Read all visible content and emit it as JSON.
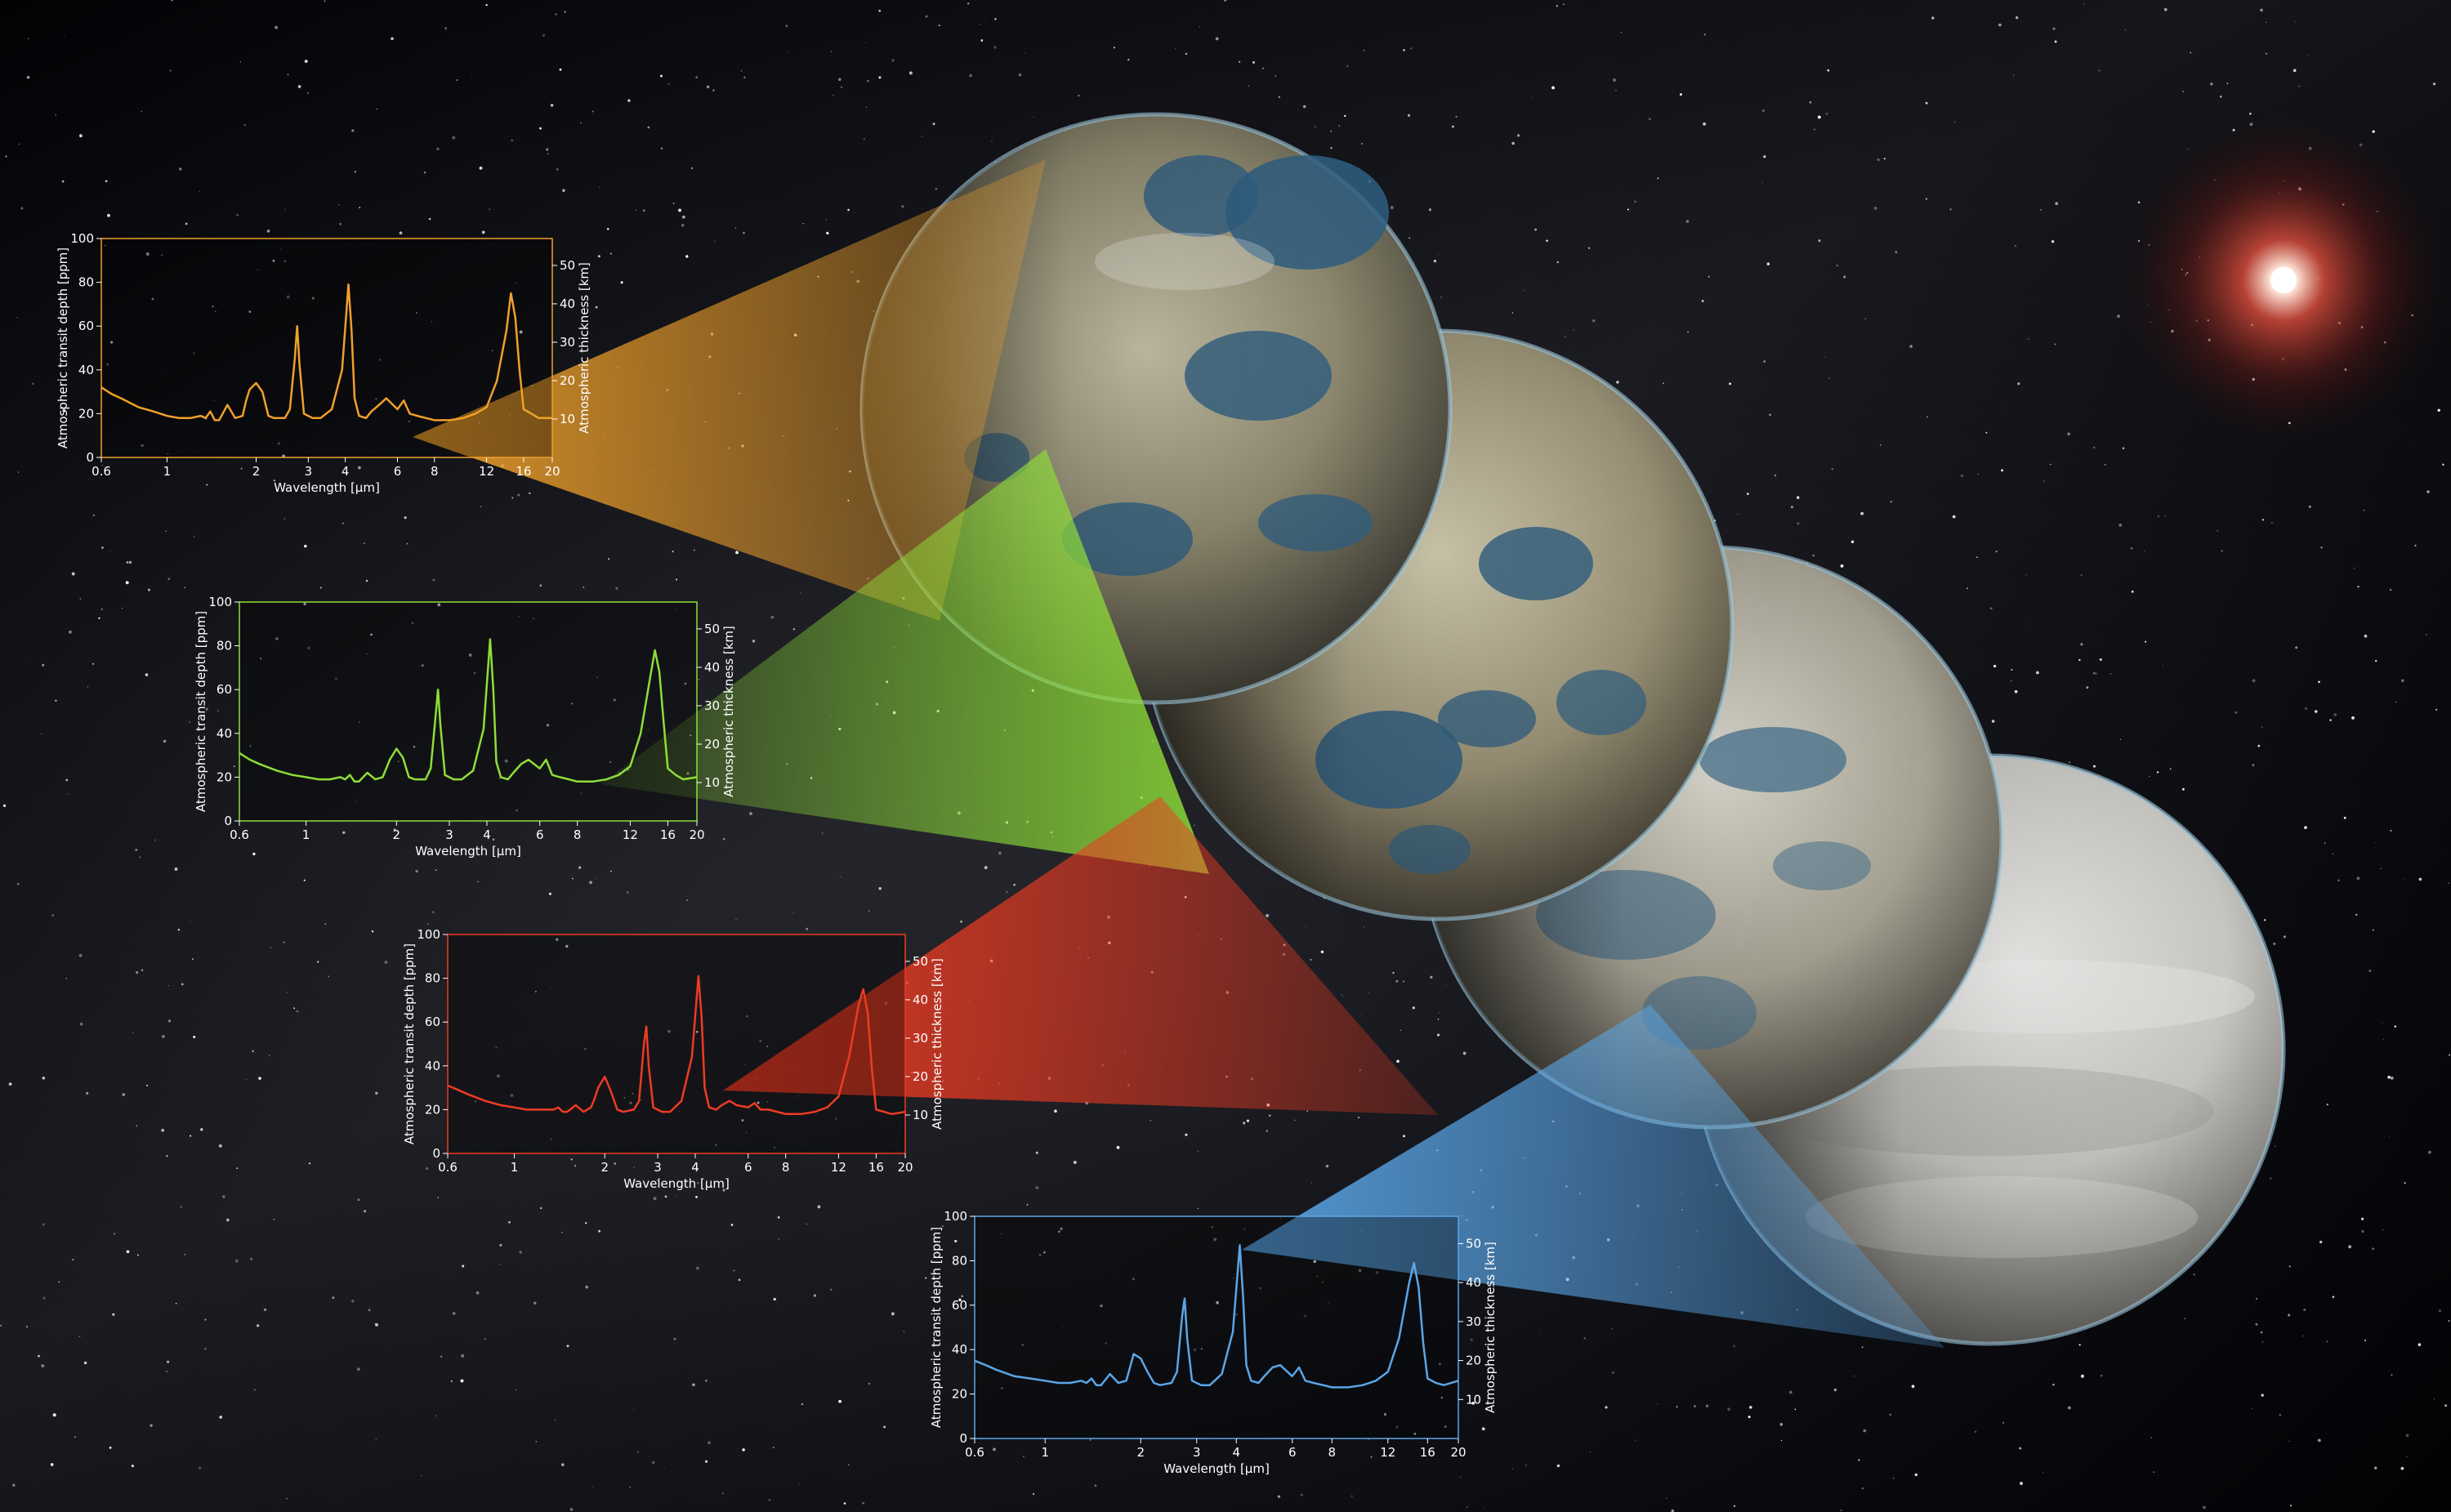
{
  "chart_data": [
    {
      "type": "line",
      "color": "#f0a02a",
      "xlabel": "Wavelength [µm]",
      "ylabel_left": "Atmospheric transit depth [ppm]",
      "ylabel_right": "Atmospheric thickness [km]",
      "xscale": "log",
      "xlim": [
        0.6,
        20
      ],
      "ylim": [
        0,
        100
      ],
      "ylim_right": [
        0,
        57
      ],
      "xticks": [
        "0.6",
        "1",
        "2",
        "3",
        "4",
        "6",
        "8",
        "12",
        "16",
        "20"
      ],
      "yticks": [
        "0",
        "20",
        "40",
        "60",
        "80",
        "100"
      ],
      "yticks_right": [
        "10",
        "20",
        "30",
        "40",
        "50"
      ],
      "series": [
        {
          "x": [
            0.6,
            0.65,
            0.7,
            0.8,
            0.9,
            1.0,
            1.1,
            1.2,
            1.3,
            1.35,
            1.4,
            1.45,
            1.5,
            1.6,
            1.7,
            1.8,
            1.85,
            1.9,
            2.0,
            2.1,
            2.2,
            2.3,
            2.5,
            2.6,
            2.7,
            2.75,
            2.8,
            2.9,
            3.1,
            3.3,
            3.6,
            3.9,
            4.1,
            4.2,
            4.3,
            4.45,
            4.7,
            4.9,
            5.2,
            5.5,
            6.0,
            6.3,
            6.6,
            7.0,
            7.5,
            8.0,
            9.0,
            10.0,
            11.0,
            12.0,
            13.0,
            14.0,
            14.5,
            15.0,
            15.5,
            16.0,
            17.0,
            18.0,
            20.0
          ],
          "y": [
            32,
            29,
            27,
            23,
            21,
            19,
            18,
            18,
            19,
            18,
            21,
            17,
            17,
            24,
            18,
            19,
            26,
            31,
            34,
            30,
            19,
            18,
            18,
            22,
            45,
            60,
            43,
            20,
            18,
            18,
            22,
            40,
            79,
            58,
            27,
            19,
            18,
            21,
            24,
            27,
            22,
            26,
            20,
            19,
            18,
            17,
            17,
            18,
            20,
            23,
            35,
            58,
            75,
            64,
            40,
            22,
            20,
            18,
            18
          ]
        }
      ]
    },
    {
      "type": "line",
      "color": "#8ede38",
      "xlabel": "Wavelength [µm]",
      "ylabel_left": "Atmospheric transit depth [ppm]",
      "ylabel_right": "Atmospheric thickness [km]",
      "xscale": "log",
      "xlim": [
        0.6,
        20
      ],
      "ylim": [
        0,
        100
      ],
      "ylim_right": [
        0,
        57
      ],
      "xticks": [
        "0.6",
        "1",
        "2",
        "3",
        "4",
        "6",
        "8",
        "12",
        "16",
        "20"
      ],
      "yticks": [
        "0",
        "20",
        "40",
        "60",
        "80",
        "100"
      ],
      "yticks_right": [
        "10",
        "20",
        "30",
        "40",
        "50"
      ],
      "series": [
        {
          "x": [
            0.6,
            0.65,
            0.7,
            0.8,
            0.9,
            1.0,
            1.1,
            1.2,
            1.3,
            1.35,
            1.4,
            1.45,
            1.5,
            1.6,
            1.7,
            1.8,
            1.85,
            1.9,
            2.0,
            2.1,
            2.2,
            2.3,
            2.5,
            2.6,
            2.7,
            2.75,
            2.8,
            2.9,
            3.1,
            3.3,
            3.6,
            3.9,
            4.1,
            4.2,
            4.3,
            4.45,
            4.7,
            4.9,
            5.2,
            5.5,
            6.0,
            6.3,
            6.6,
            7.0,
            7.5,
            8.0,
            9.0,
            10.0,
            11.0,
            12.0,
            13.0,
            14.0,
            14.5,
            15.0,
            15.5,
            16.0,
            17.0,
            18.0,
            20.0
          ],
          "y": [
            31,
            28,
            26,
            23,
            21,
            20,
            19,
            19,
            20,
            19,
            21,
            18,
            18,
            22,
            19,
            20,
            24,
            28,
            33,
            29,
            20,
            19,
            19,
            24,
            48,
            60,
            44,
            21,
            19,
            19,
            23,
            42,
            83,
            60,
            27,
            20,
            19,
            22,
            26,
            28,
            24,
            28,
            21,
            20,
            19,
            18,
            18,
            19,
            21,
            25,
            40,
            66,
            78,
            68,
            45,
            24,
            21,
            19,
            20
          ]
        }
      ]
    },
    {
      "type": "line",
      "color": "#ee3b22",
      "xlabel": "Wavelength [µm]",
      "ylabel_left": "Atmospheric transit depth [ppm]",
      "ylabel_right": "Atmospheric thickness [km]",
      "xscale": "log",
      "xlim": [
        0.6,
        20
      ],
      "ylim": [
        0,
        100
      ],
      "ylim_right": [
        0,
        57
      ],
      "xticks": [
        "0.6",
        "1",
        "2",
        "3",
        "4",
        "6",
        "8",
        "12",
        "16",
        "20"
      ],
      "yticks": [
        "0",
        "20",
        "40",
        "60",
        "80",
        "100"
      ],
      "yticks_right": [
        "10",
        "20",
        "30",
        "40",
        "50"
      ],
      "series": [
        {
          "x": [
            0.6,
            0.65,
            0.7,
            0.8,
            0.9,
            1.0,
            1.1,
            1.2,
            1.3,
            1.35,
            1.4,
            1.45,
            1.5,
            1.6,
            1.7,
            1.8,
            1.85,
            1.9,
            2.0,
            2.1,
            2.2,
            2.3,
            2.5,
            2.6,
            2.7,
            2.75,
            2.8,
            2.9,
            3.1,
            3.3,
            3.6,
            3.9,
            4.1,
            4.2,
            4.3,
            4.45,
            4.7,
            4.9,
            5.2,
            5.5,
            6.0,
            6.3,
            6.6,
            7.0,
            7.5,
            8.0,
            9.0,
            10.0,
            11.0,
            12.0,
            13.0,
            14.0,
            14.5,
            15.0,
            15.5,
            16.0,
            17.0,
            18.0,
            20.0
          ],
          "y": [
            31,
            29,
            27,
            24,
            22,
            21,
            20,
            20,
            20,
            20,
            21,
            19,
            19,
            22,
            19,
            21,
            25,
            30,
            35,
            28,
            20,
            19,
            20,
            24,
            50,
            58,
            40,
            21,
            19,
            19,
            24,
            44,
            81,
            62,
            30,
            21,
            20,
            22,
            24,
            22,
            21,
            23,
            20,
            20,
            19,
            18,
            18,
            19,
            21,
            26,
            44,
            68,
            75,
            64,
            38,
            20,
            19,
            18,
            19
          ]
        }
      ]
    },
    {
      "type": "line",
      "color": "#5aa6e8",
      "xlabel": "Wavelength [µm]",
      "ylabel_left": "Atmospheric transit depth [ppm]",
      "ylabel_right": "Atmospheric thickness [km]",
      "xscale": "log",
      "xlim": [
        0.6,
        20
      ],
      "ylim": [
        0,
        100
      ],
      "ylim_right": [
        0,
        57
      ],
      "xticks": [
        "0.6",
        "1",
        "2",
        "3",
        "4",
        "6",
        "8",
        "12",
        "16",
        "20"
      ],
      "yticks": [
        "0",
        "20",
        "40",
        "60",
        "80",
        "100"
      ],
      "yticks_right": [
        "10",
        "20",
        "30",
        "40",
        "50"
      ],
      "series": [
        {
          "x": [
            0.6,
            0.65,
            0.7,
            0.8,
            0.9,
            1.0,
            1.1,
            1.2,
            1.3,
            1.35,
            1.4,
            1.45,
            1.5,
            1.6,
            1.7,
            1.8,
            1.85,
            1.9,
            2.0,
            2.1,
            2.2,
            2.3,
            2.5,
            2.6,
            2.7,
            2.75,
            2.8,
            2.9,
            3.1,
            3.3,
            3.6,
            3.9,
            4.1,
            4.2,
            4.3,
            4.45,
            4.7,
            4.9,
            5.2,
            5.5,
            6.0,
            6.3,
            6.6,
            7.0,
            7.5,
            8.0,
            9.0,
            10.0,
            11.0,
            12.0,
            13.0,
            14.0,
            14.5,
            15.0,
            15.5,
            16.0,
            17.0,
            18.0,
            20.0
          ],
          "y": [
            35,
            33,
            31,
            28,
            27,
            26,
            25,
            25,
            26,
            25,
            27,
            24,
            24,
            29,
            25,
            26,
            32,
            38,
            36,
            30,
            25,
            24,
            25,
            30,
            55,
            63,
            45,
            26,
            24,
            24,
            29,
            48,
            87,
            64,
            33,
            26,
            25,
            28,
            32,
            33,
            28,
            32,
            26,
            25,
            24,
            23,
            23,
            24,
            26,
            30,
            45,
            70,
            79,
            68,
            43,
            27,
            25,
            24,
            26
          ]
        }
      ]
    }
  ]
}
